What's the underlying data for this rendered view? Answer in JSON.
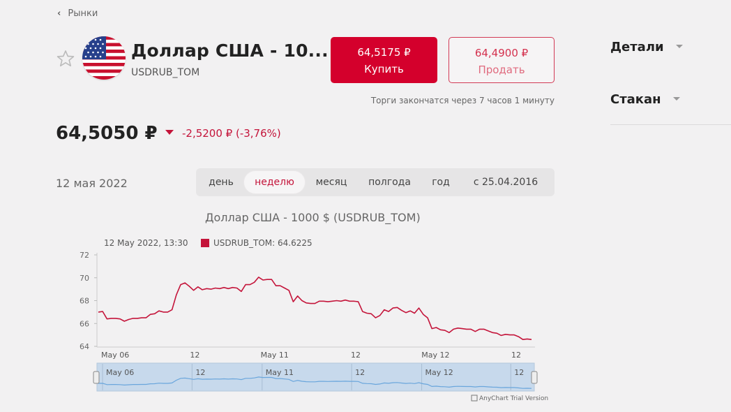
{
  "breadcrumb": {
    "back_label": "Рынки"
  },
  "instrument": {
    "title": "Доллар США - 10...",
    "ticker": "USDRUB_TOM",
    "price": "64,5050 ₽",
    "change": "-2,5200 ₽ (-3,76%)",
    "trade_note": "Торги закончатся через 7 часов 1 минуту"
  },
  "buy": {
    "price": "64,5175 ₽",
    "label": "Купить"
  },
  "sell": {
    "price": "64,4900 ₽",
    "label": "Продать"
  },
  "date_label": "12 мая 2022",
  "periods": [
    {
      "label": "день",
      "active": false
    },
    {
      "label": "неделю",
      "active": true
    },
    {
      "label": "месяц",
      "active": false
    },
    {
      "label": "полгода",
      "active": false
    },
    {
      "label": "год",
      "active": false
    },
    {
      "label": "с 25.04.2016",
      "active": false
    }
  ],
  "sidebar": {
    "details_label": "Детали",
    "orderbook_label": "Стакан"
  },
  "colors": {
    "accent": "#d4002c",
    "series": "#c4143a",
    "navigator_line": "#6aa6dc",
    "navigator_bg": "#c7d9ec"
  },
  "icons": {
    "back": "chevron-left-icon",
    "favorite": "star-outline-icon",
    "flag": "us-flag-icon",
    "caret": "caret-down-icon"
  },
  "chart_data": {
    "type": "line",
    "title": "Доллар США - 1000 $ (USDRUB_TOM)",
    "tooltip": {
      "time": "12 May 2022, 13:30",
      "series": "USDRUB_TOM",
      "value": "64.6225"
    },
    "legend_label": "USDRUB_TOM: 64.6225",
    "yticks": [
      "64",
      "66",
      "68",
      "70",
      "72"
    ],
    "ylim": [
      64,
      72
    ],
    "xticks": [
      {
        "label": "May 06",
        "pos": 0
      },
      {
        "label": "12",
        "pos": 0.207
      },
      {
        "label": "May 11",
        "pos": 0.369
      },
      {
        "label": "12",
        "pos": 0.576
      },
      {
        "label": "May 12",
        "pos": 0.738
      },
      {
        "label": "12",
        "pos": 0.944
      }
    ],
    "series": [
      {
        "name": "USDRUB_TOM",
        "values": [
          67.0,
          67.05,
          66.4,
          66.45,
          66.45,
          66.4,
          66.2,
          66.35,
          66.45,
          66.45,
          66.5,
          66.5,
          66.8,
          66.85,
          67.1,
          67.0,
          67.0,
          67.2,
          68.5,
          69.4,
          69.55,
          69.25,
          68.9,
          69.2,
          68.95,
          69.05,
          69.0,
          69.1,
          69.05,
          69.15,
          69.05,
          69.15,
          69.1,
          68.8,
          69.4,
          69.4,
          69.6,
          70.05,
          69.8,
          69.85,
          69.85,
          69.3,
          69.3,
          69.1,
          68.9,
          67.9,
          68.4,
          68.0,
          67.8,
          67.75,
          67.75,
          67.95,
          67.95,
          67.9,
          67.95,
          68.0,
          67.95,
          68.05,
          67.95,
          67.95,
          67.9,
          67.05,
          66.9,
          66.85,
          66.5,
          66.7,
          67.2,
          67.05,
          67.35,
          67.4,
          67.15,
          66.95,
          67.1,
          66.9,
          67.35,
          66.8,
          66.5,
          65.55,
          65.65,
          65.45,
          65.4,
          65.2,
          65.5,
          65.6,
          65.55,
          65.5,
          65.5,
          65.3,
          65.5,
          65.5,
          65.35,
          65.2,
          65.15,
          64.95,
          65.05,
          65.0,
          65.0,
          64.85,
          64.6,
          64.65,
          64.6
        ]
      }
    ],
    "navigator": {
      "labels": [
        {
          "label": "May 06",
          "pos": 0
        },
        {
          "label": "12",
          "pos": 0.207
        },
        {
          "label": "May 11",
          "pos": 0.369
        },
        {
          "label": "12",
          "pos": 0.576
        },
        {
          "label": "May 12",
          "pos": 0.738
        },
        {
          "label": "12",
          "pos": 0.944
        }
      ]
    },
    "credit": "AnyChart Trial Version"
  }
}
